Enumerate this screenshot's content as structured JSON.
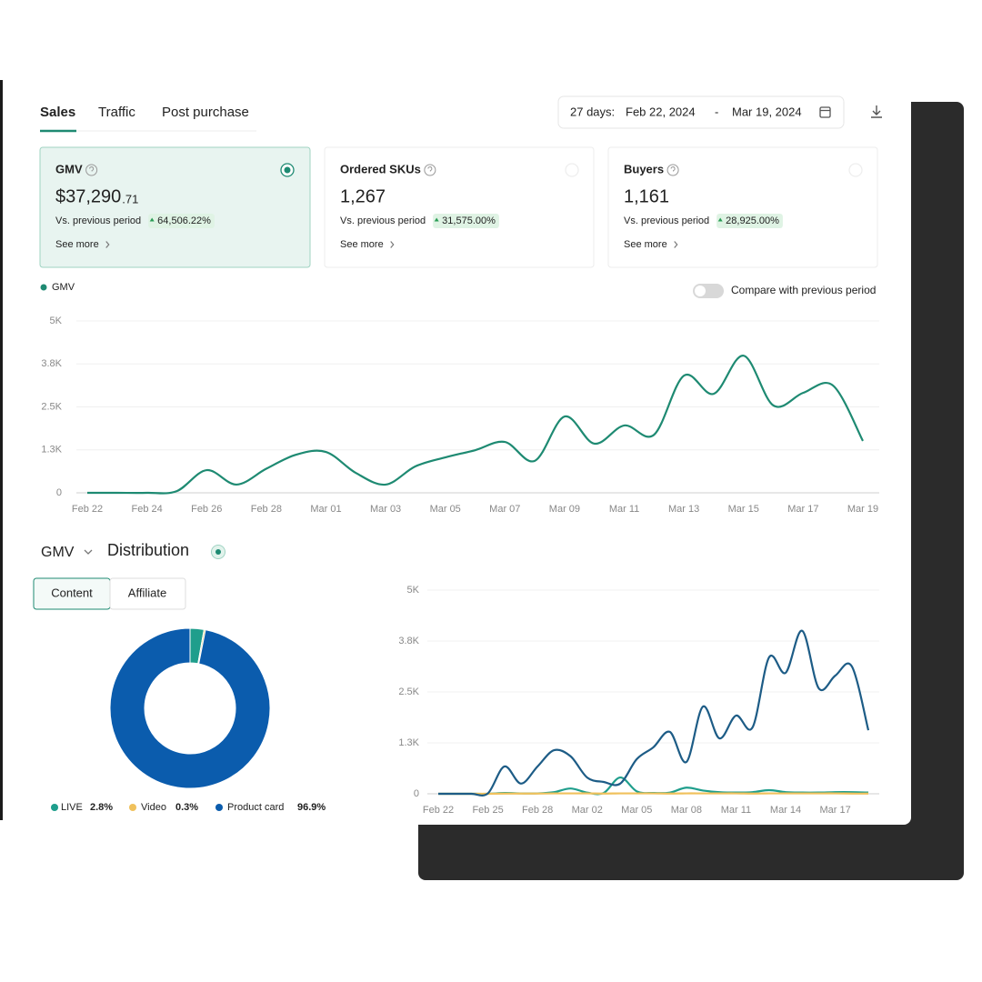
{
  "tabs": [
    "Sales",
    "Traffic",
    "Post purchase"
  ],
  "date_range": {
    "prefix": "27 days:",
    "start": "Feb 22, 2024",
    "separator": "-",
    "end": "Mar 19, 2024"
  },
  "selected_card": 0,
  "metric_cards": [
    {
      "label": "GMV",
      "value": "$37,290",
      "value_fraction": ".71",
      "comparison_label": "Vs. previous period",
      "change": "64,506.22%",
      "link": "See more"
    },
    {
      "label": "Ordered SKUs",
      "value": "1,267",
      "comparison_label": "Vs. previous period",
      "change": "31,575.00%",
      "link": "See more"
    },
    {
      "label": "Buyers",
      "value": "1,161",
      "comparison_label": "Vs. previous period",
      "change": "28,925.00%",
      "link": "See more"
    }
  ],
  "compare_toggle": "Compare with previous period",
  "distribution": {
    "metric": "GMV",
    "title": "Distribution",
    "tabs": [
      "Content",
      "Affiliate"
    ]
  },
  "chart_data": [
    {
      "type": "line",
      "categories": [
        "Feb 22",
        null,
        "Feb 24",
        null,
        "Feb 26",
        null,
        "Feb 28",
        null,
        "Mar 01",
        null,
        "Mar 03",
        null,
        "Mar 05",
        null,
        "Mar 07",
        null,
        "Mar 09",
        null,
        "Mar 11",
        null,
        "Mar 13",
        null,
        "Mar 15",
        null,
        "Mar 17",
        null,
        "Mar 19"
      ],
      "series": [
        {
          "name": "GMV",
          "color": "#1e8a72",
          "values": [
            0,
            0,
            0,
            50,
            660,
            240,
            700,
            1110,
            1190,
            580,
            240,
            770,
            1030,
            1240,
            1480,
            930,
            2220,
            1430,
            1960,
            1690,
            3410,
            2880,
            3990,
            2540,
            2910,
            3120,
            1510
          ]
        }
      ],
      "ylim": [
        0,
        5000
      ],
      "yticks": [
        0,
        {
          "value": 1250,
          "label": "1.3K"
        },
        {
          "value": 2500,
          "label": "2.5K"
        },
        {
          "value": 3750,
          "label": "3.8K"
        },
        {
          "value": 5000,
          "label": "5K"
        }
      ],
      "grid": true
    },
    {
      "type": "donut",
      "categories": [
        "LIVE",
        "Video",
        "Product card"
      ],
      "values": [
        2.8,
        0.3,
        96.9
      ],
      "value_labels": [
        "2.8%",
        "0.3%",
        "96.9%"
      ],
      "colors": [
        "#1f9e8c",
        "#f0c15c",
        "#0b5cad"
      ]
    },
    {
      "type": "line",
      "categories": [
        "Feb 22",
        null,
        null,
        "Feb 25",
        null,
        null,
        "Feb 28",
        null,
        null,
        "Mar 02",
        null,
        null,
        "Mar 05",
        null,
        null,
        "Mar 08",
        null,
        null,
        "Mar 11",
        null,
        null,
        "Mar 14",
        null,
        null,
        "Mar 17",
        null,
        null
      ],
      "series": [
        {
          "color": "#1f9e8c",
          "values": [
            0,
            0,
            0,
            0,
            20,
            10,
            10,
            40,
            130,
            30,
            20,
            400,
            60,
            20,
            30,
            150,
            80,
            40,
            30,
            40,
            90,
            40,
            30,
            30,
            40,
            40,
            30
          ]
        },
        {
          "color": "#f0c15c",
          "values": [
            0,
            0,
            0,
            0,
            5,
            5,
            5,
            10,
            10,
            10,
            5,
            10,
            10,
            10,
            5,
            10,
            10,
            10,
            10,
            5,
            10,
            10,
            10,
            10,
            10,
            5,
            5
          ]
        },
        {
          "color": "#1d5c86",
          "values": [
            0,
            0,
            0,
            10,
            670,
            250,
            670,
            1070,
            920,
            400,
            290,
            250,
            850,
            1140,
            1520,
            780,
            2140,
            1360,
            1920,
            1630,
            3350,
            2970,
            4000,
            2590,
            2900,
            3130,
            1560
          ]
        }
      ],
      "ylim": [
        0,
        5000
      ],
      "yticks": [
        0,
        {
          "value": 1250,
          "label": "1.3K"
        },
        {
          "value": 2500,
          "label": "2.5K"
        },
        {
          "value": 3750,
          "label": "3.8K"
        },
        {
          "value": 5000,
          "label": "5K"
        }
      ],
      "grid": true
    }
  ]
}
